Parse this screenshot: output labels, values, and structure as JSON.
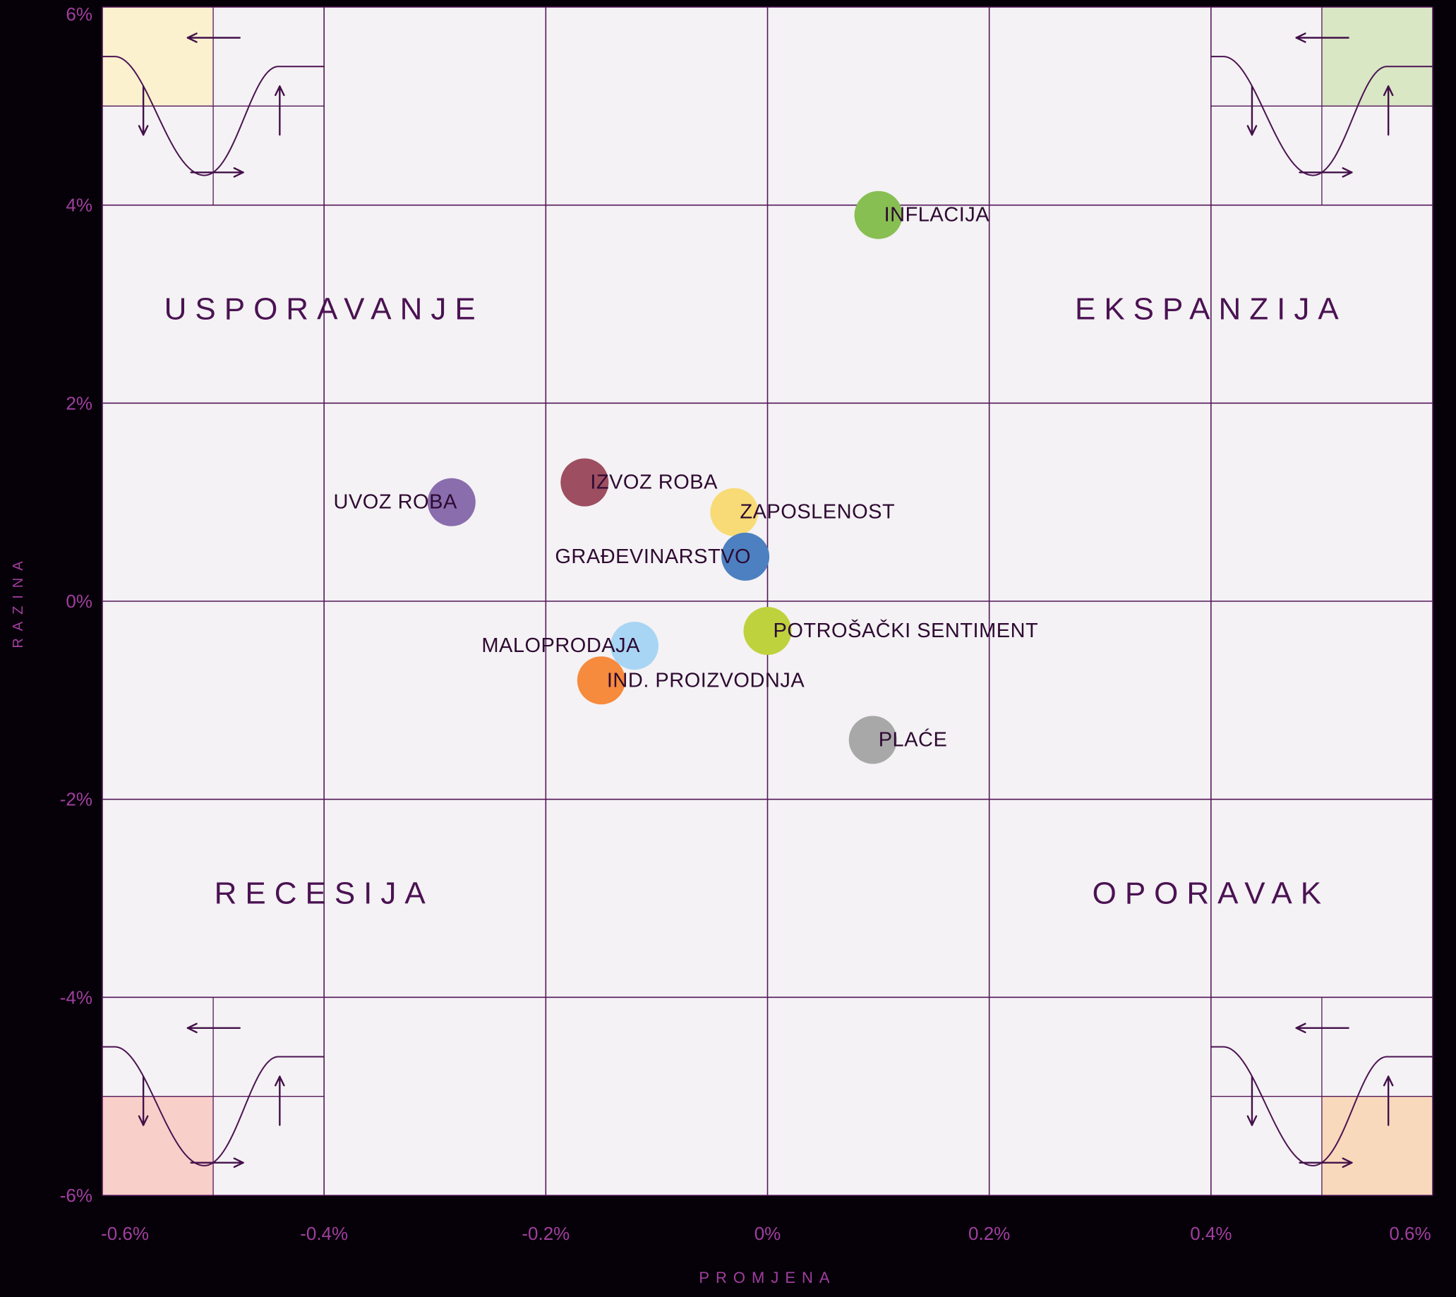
{
  "chart_data": {
    "type": "scatter",
    "title": "",
    "xlabel": "PROMJENA",
    "ylabel": "RAZINA",
    "xlim": [
      -0.6,
      0.6
    ],
    "ylim": [
      -6,
      6
    ],
    "grid": true,
    "x_ticks": [
      {
        "value": -0.6,
        "label": "-0.6%"
      },
      {
        "value": -0.4,
        "label": "-0.4%"
      },
      {
        "value": -0.2,
        "label": "-0.2%"
      },
      {
        "value": 0,
        "label": "0%"
      },
      {
        "value": 0.2,
        "label": "0.2%"
      },
      {
        "value": 0.4,
        "label": "0.4%"
      },
      {
        "value": 0.6,
        "label": "0.6%"
      }
    ],
    "y_ticks": [
      {
        "value": 6,
        "label": "6%"
      },
      {
        "value": 4,
        "label": "4%"
      },
      {
        "value": 2,
        "label": "2%"
      },
      {
        "value": 0,
        "label": "0%"
      },
      {
        "value": -2,
        "label": "-2%"
      },
      {
        "value": -4,
        "label": "-4%"
      },
      {
        "value": -6,
        "label": "-6%"
      }
    ],
    "quadrants": [
      {
        "id": "usporavanje",
        "label": "USPORAVANJE",
        "x": -0.4,
        "y": 2.95
      },
      {
        "id": "ekspanzija",
        "label": "EKSPANZIJA",
        "x": 0.4,
        "y": 2.95
      },
      {
        "id": "recesija",
        "label": "RECESIJA",
        "x": -0.4,
        "y": -2.95
      },
      {
        "id": "oporavak",
        "label": "OPORAVAK",
        "x": 0.4,
        "y": -2.95
      }
    ],
    "points": [
      {
        "label": "INFLACIJA",
        "x": 0.1,
        "y": 3.9,
        "color": "#87bf52",
        "label_side": "right"
      },
      {
        "label": "IZVOZ ROBA",
        "x": -0.165,
        "y": 1.2,
        "color": "#9e4e61",
        "label_side": "right"
      },
      {
        "label": "UVOZ ROBA",
        "x": -0.285,
        "y": 1.0,
        "color": "#8a6dad",
        "label_side": "left"
      },
      {
        "label": "ZAPOSLENOST",
        "x": -0.03,
        "y": 0.9,
        "color": "#f8db76",
        "label_side": "right"
      },
      {
        "label": "GRAĐEVINARSTVO",
        "x": -0.02,
        "y": 0.45,
        "color": "#4c80c1",
        "label_side": "left"
      },
      {
        "label": "POTROŠAČKI SENTIMENT",
        "x": 0.0,
        "y": -0.3,
        "color": "#bed23d",
        "label_side": "right"
      },
      {
        "label": "IND. PROIZVODNJA",
        "x": -0.15,
        "y": -0.8,
        "color": "#f68a3d",
        "label_side": "right"
      },
      {
        "label": "MALOPRODAJA",
        "x": -0.12,
        "y": -0.45,
        "color": "#a8d5f4",
        "label_side": "left"
      },
      {
        "label": "PLAĆE",
        "x": 0.095,
        "y": -1.4,
        "color": "#a8a8a8",
        "label_side": "right"
      }
    ],
    "corner_markers": [
      {
        "corner": "top-left",
        "highlight_cell": "top-left",
        "highlight_color": "#fbf1cf"
      },
      {
        "corner": "top-right",
        "highlight_cell": "top-right",
        "highlight_color": "#d9e7c4"
      },
      {
        "corner": "bottom-left",
        "highlight_cell": "bottom-left",
        "highlight_color": "#f8cfc9"
      },
      {
        "corner": "bottom-right",
        "highlight_cell": "bottom-right",
        "highlight_color": "#f8d9bc"
      }
    ],
    "colors": {
      "background": "#060008",
      "plot_bg": "#f4f2f4",
      "grid": "#54175a",
      "cycle_curve": "#4c1252",
      "arrow": "#43104a",
      "tick_label": "#a03f9f",
      "axis_title": "#a03f9f",
      "quadrant_label": "#4b1253",
      "point_label": "#2e0a32"
    }
  }
}
